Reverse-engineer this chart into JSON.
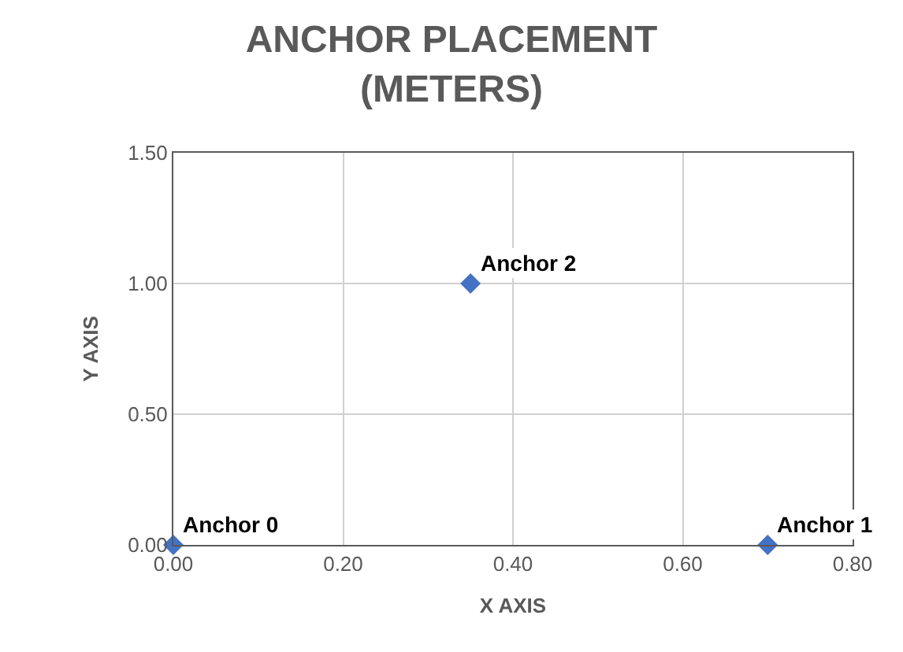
{
  "chart_data": {
    "type": "scatter",
    "title": "ANCHOR PLACEMENT\n(METERS)",
    "xlabel": "X AXIS",
    "ylabel": "Y AXIS",
    "x": [
      0,
      0.7,
      0.35
    ],
    "series": [
      {
        "color": "#4472c4",
        "values": [
          0,
          0,
          1
        ]
      }
    ],
    "marker": "diamond",
    "grid": true,
    "legend": false,
    "xlim": [
      0,
      0.8
    ],
    "ylim": [
      0,
      1.5
    ],
    "xticks": [
      {
        "value": 0,
        "label": "0.00"
      },
      {
        "value": 0.2,
        "label": "0.20"
      },
      {
        "value": 0.4,
        "label": "0.40"
      },
      {
        "value": 0.6,
        "label": "0.60"
      },
      {
        "value": 0.8,
        "label": "0.80"
      }
    ],
    "yticks": [
      {
        "value": 0,
        "label": "0.00"
      },
      {
        "value": 0.5,
        "label": "0.50"
      },
      {
        "value": 1.0,
        "label": "1.00"
      },
      {
        "value": 1.5,
        "label": "1.50"
      }
    ],
    "annotations": [
      {
        "text": "Anchor 0",
        "x": 0,
        "y": 0
      },
      {
        "text": "Anchor 1",
        "x": 0.7,
        "y": 0
      },
      {
        "text": "Anchor 2",
        "x": 0.35,
        "y": 1
      }
    ]
  }
}
